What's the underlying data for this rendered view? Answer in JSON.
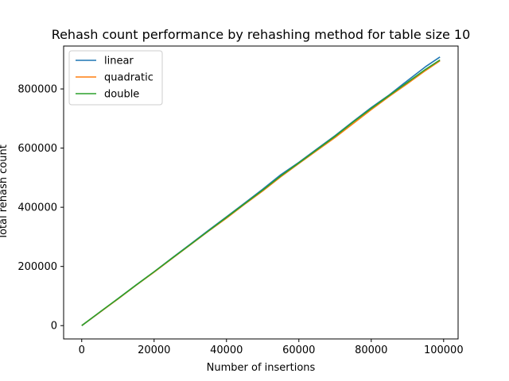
{
  "chart_data": {
    "type": "line",
    "title": "Rehash count performance by rehashing method for table size 10",
    "xlabel": "Number of insertions",
    "ylabel": "Total rehash count",
    "xlim": [
      -5000,
      104000
    ],
    "ylim": [
      -45000,
      945000
    ],
    "xticks": [
      0,
      20000,
      40000,
      60000,
      80000,
      100000
    ],
    "yticks": [
      0,
      200000,
      400000,
      600000,
      800000
    ],
    "grid": false,
    "legend_position": "upper-left",
    "x": [
      0,
      5000,
      10000,
      15000,
      20000,
      25000,
      30000,
      35000,
      40000,
      45000,
      50000,
      55000,
      60000,
      65000,
      70000,
      75000,
      80000,
      85000,
      90000,
      95000,
      99000
    ],
    "series": [
      {
        "name": "linear",
        "color": "#1f77b4",
        "values": [
          0,
          45000,
          91000,
          137000,
          182000,
          229000,
          275000,
          322000,
          368000,
          414000,
          461000,
          510000,
          552000,
          597000,
          642000,
          690000,
          737000,
          780000,
          828000,
          875000,
          908000
        ]
      },
      {
        "name": "quadratic",
        "color": "#ff7f0e",
        "values": [
          0,
          45000,
          90000,
          136000,
          181000,
          227000,
          273000,
          319000,
          363000,
          410000,
          455000,
          503000,
          548000,
          592000,
          636000,
          683000,
          730000,
          775000,
          818000,
          862000,
          895000
        ]
      },
      {
        "name": "double",
        "color": "#2ca02c",
        "values": [
          0,
          46000,
          91000,
          137000,
          182000,
          228000,
          274000,
          320000,
          366000,
          412000,
          458000,
          506000,
          550000,
          595000,
          640000,
          688000,
          734000,
          778000,
          822000,
          866000,
          898000
        ]
      }
    ]
  }
}
